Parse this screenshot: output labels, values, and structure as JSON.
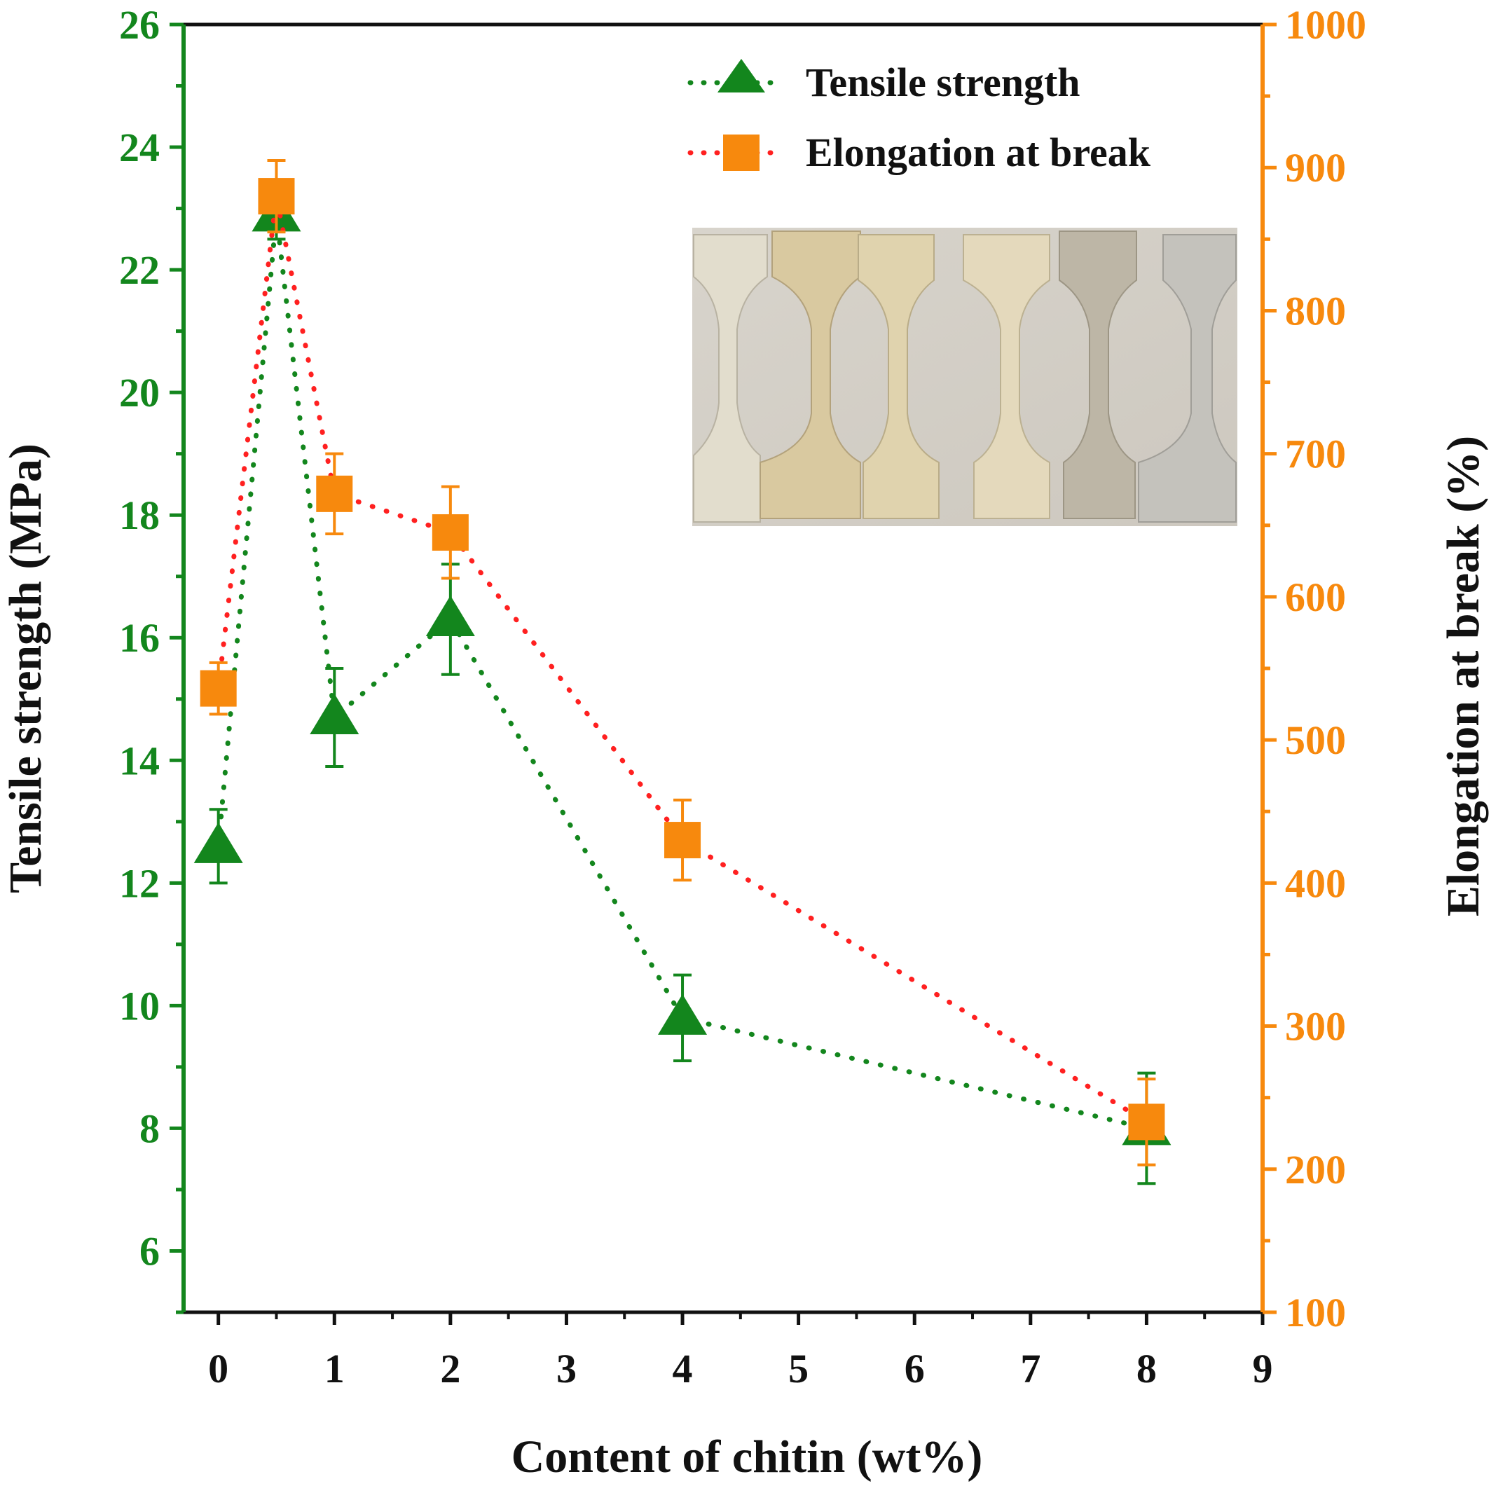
{
  "chart_data": {
    "type": "line",
    "xlabel": "Content of chitin (wt%)",
    "ylabel": "Tensile strength (MPa)",
    "y2label": "Elongation at break (%)",
    "xlim": [
      -0.3,
      9
    ],
    "xticks": [
      0,
      1,
      2,
      3,
      4,
      5,
      6,
      7,
      8,
      9
    ],
    "ylim": [
      5,
      26
    ],
    "yticks": [
      6,
      8,
      10,
      12,
      14,
      16,
      18,
      20,
      22,
      24,
      26
    ],
    "y2lim": [
      100,
      1000
    ],
    "y2ticks": [
      100,
      200,
      300,
      400,
      500,
      600,
      700,
      800,
      900,
      1000
    ],
    "grid": false,
    "legend": {
      "placement": "top-right"
    },
    "series": [
      {
        "name": "Tensile strength",
        "axis": "left",
        "marker": "triangle",
        "color": "#13861d",
        "line_color": "#13861d",
        "x": [
          0,
          0.5,
          1,
          2,
          4,
          8
        ],
        "values": [
          12.6,
          22.9,
          14.7,
          16.3,
          9.8,
          8.0
        ],
        "errors": [
          0.6,
          0.4,
          0.8,
          0.9,
          0.7,
          0.9
        ]
      },
      {
        "name": "Elongation at break",
        "axis": "right",
        "marker": "square",
        "color": "#f7890d",
        "line_color": "#ff2020",
        "x": [
          0,
          0.5,
          1,
          2,
          4,
          8
        ],
        "values": [
          536,
          880,
          672,
          645,
          430,
          233
        ],
        "errors": [
          18,
          25,
          28,
          32,
          28,
          30
        ]
      }
    ],
    "inset": {
      "kind": "photo",
      "subject": "six dumbbell-shaped tensile test specimens"
    },
    "colors": {
      "left_axis": "#13861d",
      "right_axis": "#f7890d",
      "frame": "#111111"
    }
  }
}
